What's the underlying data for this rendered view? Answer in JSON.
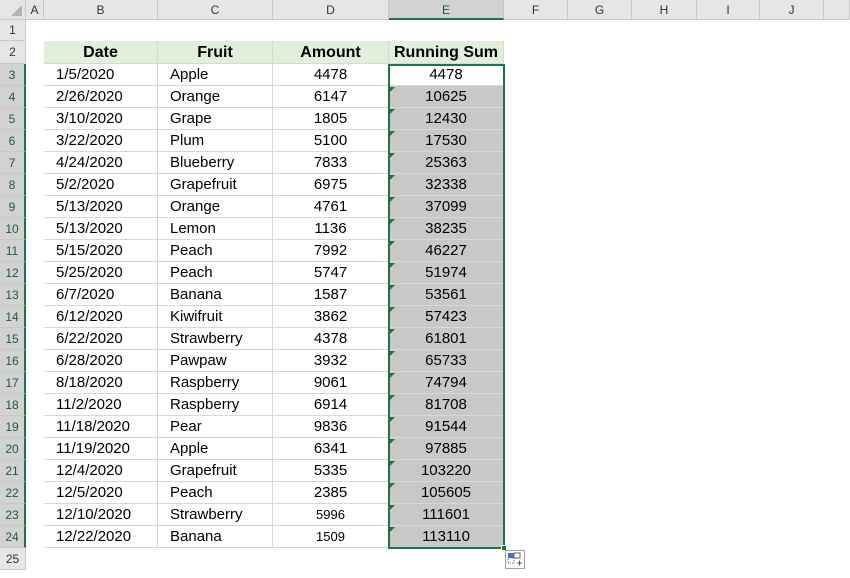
{
  "columns": [
    "A",
    "B",
    "C",
    "D",
    "E",
    "F",
    "G",
    "H",
    "I",
    "J"
  ],
  "selected_column": "E",
  "rows": [
    "1",
    "2",
    "3",
    "4",
    "5",
    "6",
    "7",
    "8",
    "9",
    "10",
    "11",
    "12",
    "13",
    "14",
    "15",
    "16",
    "17",
    "18",
    "19",
    "20",
    "21",
    "22",
    "23",
    "24",
    "25"
  ],
  "headers": {
    "date": "Date",
    "fruit": "Fruit",
    "amount": "Amount",
    "running_sum": "Running Sum"
  },
  "data": [
    [
      "1/5/2020",
      "Apple",
      "4478",
      "4478"
    ],
    [
      "2/26/2020",
      "Orange",
      "6147",
      "10625"
    ],
    [
      "3/10/2020",
      "Grape",
      "1805",
      "12430"
    ],
    [
      "3/22/2020",
      "Plum",
      "5100",
      "17530"
    ],
    [
      "4/24/2020",
      "Blueberry",
      "7833",
      "25363"
    ],
    [
      "5/2/2020",
      "Grapefruit",
      "6975",
      "32338"
    ],
    [
      "5/13/2020",
      "Orange",
      "4761",
      "37099"
    ],
    [
      "5/13/2020",
      "Lemon",
      "1136",
      "38235"
    ],
    [
      "5/15/2020",
      "Peach",
      "7992",
      "46227"
    ],
    [
      "5/25/2020",
      "Peach",
      "5747",
      "51974"
    ],
    [
      "6/7/2020",
      "Banana",
      "1587",
      "53561"
    ],
    [
      "6/12/2020",
      "Kiwifruit",
      "3862",
      "57423"
    ],
    [
      "6/22/2020",
      "Strawberry",
      "4378",
      "61801"
    ],
    [
      "6/28/2020",
      "Pawpaw",
      "3932",
      "65733"
    ],
    [
      "8/18/2020",
      "Raspberry",
      "9061",
      "74794"
    ],
    [
      "11/2/2020",
      "Raspberry",
      "6914",
      "81708"
    ],
    [
      "11/18/2020",
      "Pear",
      "9836",
      "91544"
    ],
    [
      "11/19/2020",
      "Apple",
      "6341",
      "97885"
    ],
    [
      "12/4/2020",
      "Grapefruit",
      "5335",
      "103220"
    ],
    [
      "12/5/2020",
      "Peach",
      "2385",
      "105605"
    ],
    [
      "12/10/2020",
      "Strawberry",
      "5996",
      "111601"
    ],
    [
      "12/22/2020",
      "Banana",
      "1509",
      "113110"
    ]
  ],
  "colors": {
    "accent": "#217346",
    "header_fill": "#e2efda",
    "selection_fill": "#c8c8c8"
  },
  "icons": {
    "quick_analysis": "quick-analysis-icon"
  }
}
